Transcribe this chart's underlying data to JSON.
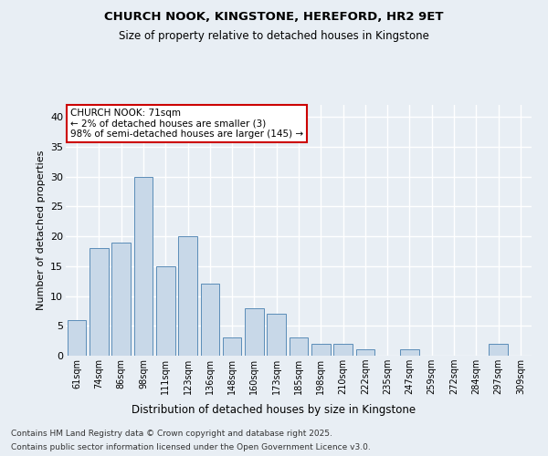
{
  "title1": "CHURCH NOOK, KINGSTONE, HEREFORD, HR2 9ET",
  "title2": "Size of property relative to detached houses in Kingstone",
  "xlabel": "Distribution of detached houses by size in Kingstone",
  "ylabel": "Number of detached properties",
  "bar_color": "#c8d8e8",
  "bar_edge_color": "#5b8db8",
  "categories": [
    "61sqm",
    "74sqm",
    "86sqm",
    "98sqm",
    "111sqm",
    "123sqm",
    "136sqm",
    "148sqm",
    "160sqm",
    "173sqm",
    "185sqm",
    "198sqm",
    "210sqm",
    "222sqm",
    "235sqm",
    "247sqm",
    "259sqm",
    "272sqm",
    "284sqm",
    "297sqm",
    "309sqm"
  ],
  "values": [
    6,
    18,
    19,
    30,
    15,
    20,
    12,
    3,
    8,
    7,
    3,
    2,
    2,
    1,
    0,
    1,
    0,
    0,
    0,
    2,
    0
  ],
  "ylim": [
    0,
    42
  ],
  "yticks": [
    0,
    5,
    10,
    15,
    20,
    25,
    30,
    35,
    40
  ],
  "annotation_text": "CHURCH NOOK: 71sqm\n← 2% of detached houses are smaller (3)\n98% of semi-detached houses are larger (145) →",
  "annotation_box_color": "#ffffff",
  "annotation_box_edge": "#cc0000",
  "footer_line1": "Contains HM Land Registry data © Crown copyright and database right 2025.",
  "footer_line2": "Contains public sector information licensed under the Open Government Licence v3.0.",
  "background_color": "#e8eef4",
  "grid_color": "#ffffff"
}
